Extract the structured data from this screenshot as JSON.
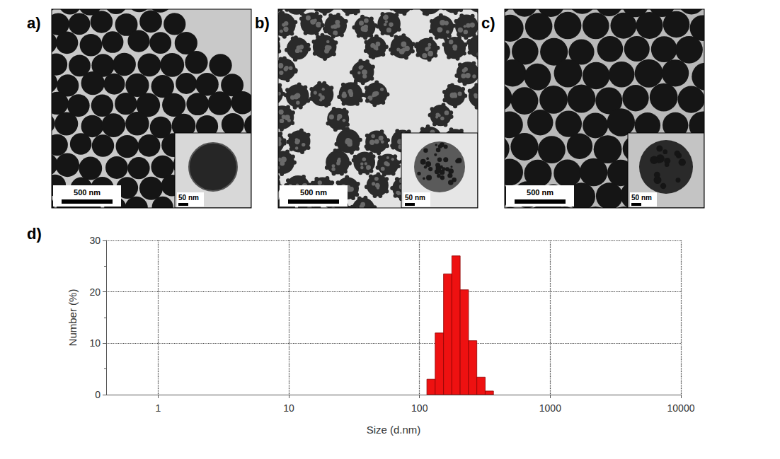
{
  "panels": [
    {
      "label": "a)",
      "scale_bar": "500 nm",
      "inset_scale_bar": "50 nm"
    },
    {
      "label": "b)",
      "scale_bar": "500 nm",
      "inset_scale_bar": "50 nm"
    },
    {
      "label": "c)",
      "scale_bar": "500 nm",
      "inset_scale_bar": "50 nm"
    }
  ],
  "chart_data": {
    "label": "d)",
    "type": "histogram",
    "bins": [
      113.8,
      131.7,
      152.6,
      176.7,
      204.6,
      237.0,
      274.4,
      317.8,
      368.0
    ],
    "counts": [
      3,
      12,
      23.5,
      27,
      20.4,
      10.5,
      3.4,
      0.7
    ],
    "color": "#ee1111",
    "xlabel": "Size (d.nm)",
    "ylabel": "Number (%)",
    "log": "x",
    "xlim": [
      0.4,
      10000
    ],
    "xticks": [
      1,
      10,
      100,
      1000,
      10000
    ],
    "ylim": [
      0,
      30
    ],
    "yticks": [
      0,
      10,
      20,
      30
    ],
    "grid": true
  }
}
